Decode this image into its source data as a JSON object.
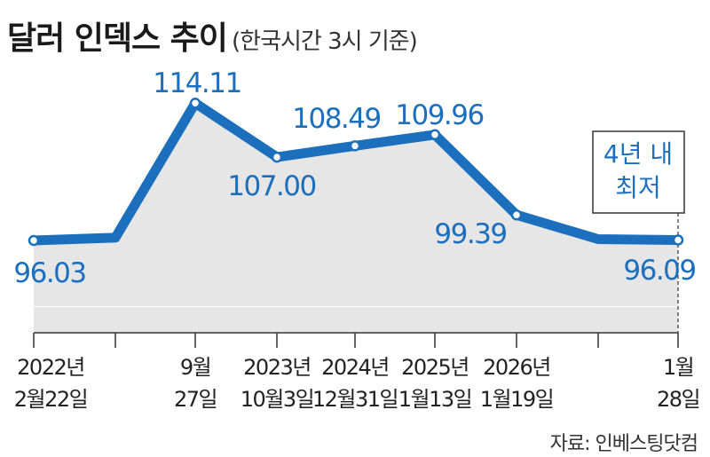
{
  "title": "달러 인덱스 추이",
  "subtitle": "(한국시간 3시 기준)",
  "source": "자료: 인베스팅닷컴",
  "colors": {
    "line": "#1c6fbd",
    "area": "#e6e6e6",
    "text": "#1a1a1a"
  },
  "annotation": {
    "lines": [
      "4년 내",
      "최저"
    ]
  },
  "chart_data": {
    "type": "line",
    "y_axis_visible": false,
    "x": [
      "2022-02-22",
      "2022-07",
      "2022-09-27",
      "2023-10-03",
      "2024-12-31",
      "2025-01-13",
      "2026-01-19",
      "2026-01",
      "2026-01-28"
    ],
    "values": [
      96.03,
      96.4,
      114.11,
      107.0,
      108.49,
      109.96,
      99.39,
      96.2,
      96.09
    ],
    "labels": [
      "96.03",
      "",
      "114.11",
      "107.00",
      "108.49",
      "109.96",
      "99.39",
      "",
      "96.09"
    ],
    "markers": [
      true,
      false,
      true,
      true,
      true,
      true,
      true,
      false,
      true
    ],
    "ticks": [
      [
        "2022년",
        "2월22일"
      ],
      [
        "",
        ""
      ],
      [
        "9월",
        "27일"
      ],
      [
        "2023년",
        "10월3일"
      ],
      [
        "2024년",
        "12월31일"
      ],
      [
        "2025년",
        "1월13일"
      ],
      [
        "2026년",
        "1월19일"
      ],
      [
        "",
        ""
      ],
      [
        "1월",
        "28일"
      ]
    ]
  }
}
